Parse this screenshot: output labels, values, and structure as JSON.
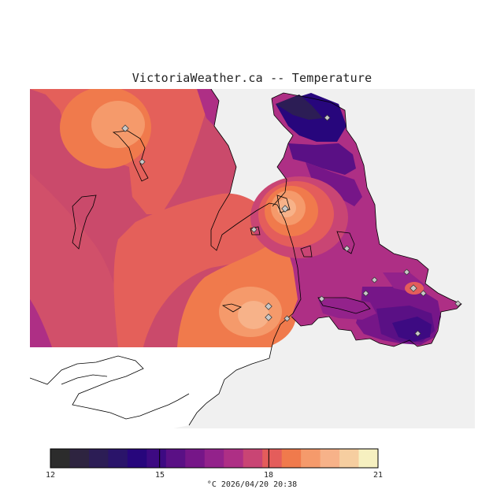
{
  "title": "VictoriaWeather.ca -- Temperature",
  "colors": {
    "background": "#f0f0f0",
    "coastline": "#000000",
    "land_unsampled": "#ffffff",
    "station_marker": "#c8c8c8",
    "ramp": [
      "#2c2c2c",
      "#2e2440",
      "#2c1d55",
      "#2a146a",
      "#27067c",
      "#3d0a82",
      "#5a1085",
      "#761688",
      "#93228b",
      "#ae2f85",
      "#c94574",
      "#e45d5b",
      "#f07a4c",
      "#f59a6b",
      "#f7b289",
      "#f6cea0",
      "#f6f0c0"
    ]
  },
  "legend": {
    "min": 12,
    "max": 21,
    "tick_labels": [
      "12",
      "15",
      "18",
      "21"
    ],
    "unit_and_time": "°C  2026/04/20 20:38"
  },
  "map": {
    "place_labels": [],
    "stations": 17,
    "temperature_range_c": [
      14.5,
      20.5
    ]
  }
}
